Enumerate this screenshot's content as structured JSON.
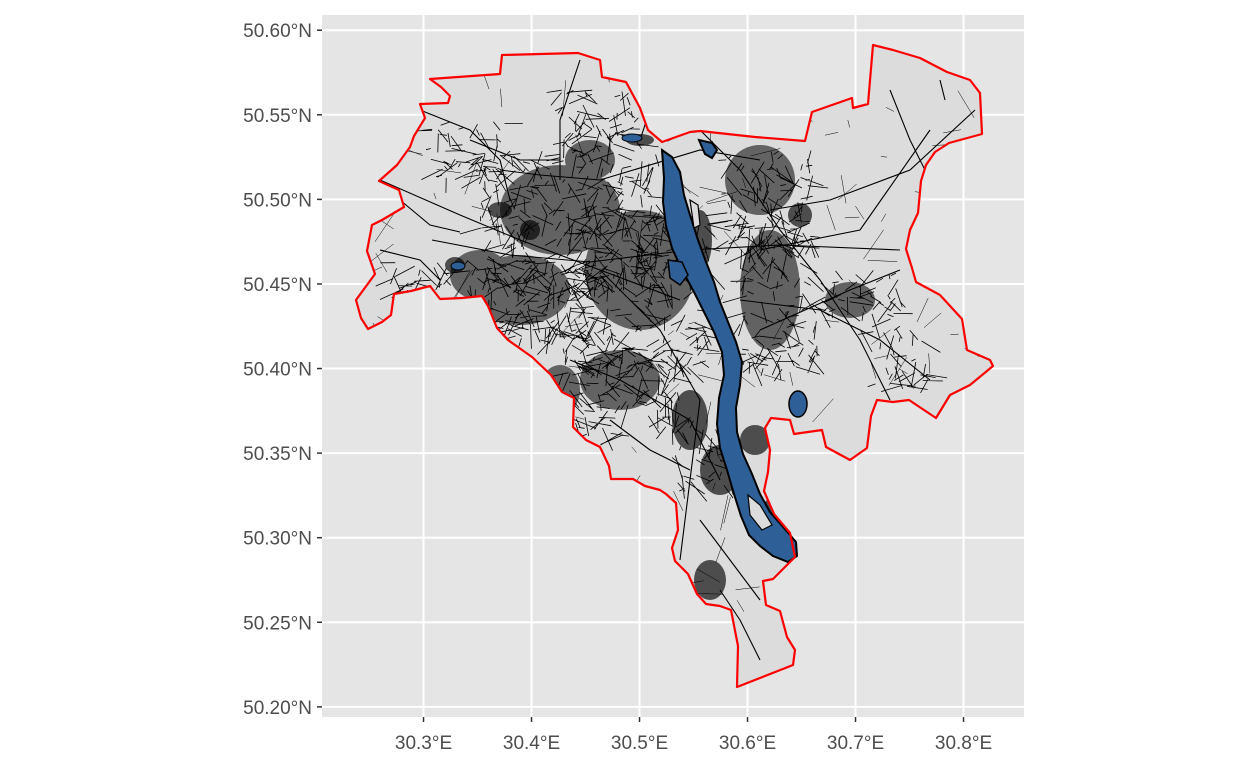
{
  "map": {
    "axes": {
      "x_ticks": [
        {
          "value": 30.3,
          "label": "30.3°E"
        },
        {
          "value": 30.4,
          "label": "30.4°E"
        },
        {
          "value": 30.5,
          "label": "30.5°E"
        },
        {
          "value": 30.6,
          "label": "30.6°E"
        },
        {
          "value": 30.7,
          "label": "30.7°E"
        },
        {
          "value": 30.8,
          "label": "30.8°E"
        }
      ],
      "y_ticks": [
        {
          "value": 50.6,
          "label": "50.60°N"
        },
        {
          "value": 50.55,
          "label": "50.55°N"
        },
        {
          "value": 50.5,
          "label": "50.50°N"
        },
        {
          "value": 50.45,
          "label": "50.45°N"
        },
        {
          "value": 50.4,
          "label": "50.40°N"
        },
        {
          "value": 50.35,
          "label": "50.35°N"
        },
        {
          "value": 50.3,
          "label": "50.30°N"
        },
        {
          "value": 50.25,
          "label": "50.25°N"
        },
        {
          "value": 50.2,
          "label": "50.20°N"
        }
      ],
      "x_range": [
        30.206,
        30.856
      ],
      "y_range": [
        50.194,
        50.609
      ]
    },
    "colors": {
      "panel_background": "#e5e5e5",
      "grid": "#ffffff",
      "city_fill": "#dcdcdc",
      "boundary": "#ff0000",
      "river": "#2e5f97",
      "roads": "#000000",
      "buildings": "#4d4d4d"
    },
    "layers": [
      "city-area",
      "roads",
      "river",
      "city-boundary"
    ]
  }
}
